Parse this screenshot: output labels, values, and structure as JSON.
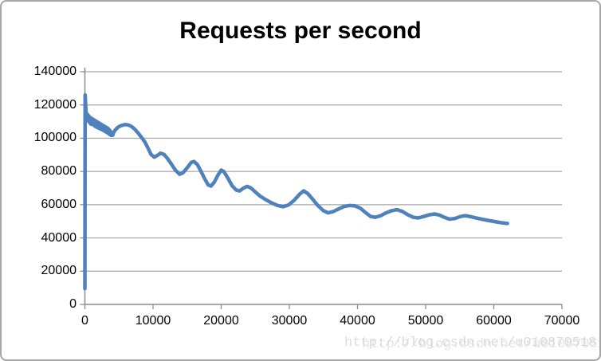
{
  "header": {
    "title": "Requests per second"
  },
  "watermark": {
    "text": "http://blog.csdn.net/u010870518"
  },
  "colors": {
    "series_line": "#4F81BD",
    "gridline": "#a6a6a6",
    "axis": "#8c8c8c",
    "label_text": "#000000",
    "frame_border": "#a6a6a6",
    "watermark_text": "#d4d4d4"
  },
  "chart_data": {
    "type": "line",
    "title": "Requests per second",
    "xlabel": "",
    "ylabel": "",
    "xlim": [
      0,
      70000
    ],
    "ylim": [
      0,
      140000
    ],
    "x_ticks": [
      0,
      10000,
      20000,
      30000,
      40000,
      50000,
      60000,
      70000
    ],
    "y_ticks": [
      0,
      20000,
      40000,
      60000,
      80000,
      100000,
      120000,
      140000
    ],
    "grid": "horizontal",
    "legend_position": "none",
    "series": [
      {
        "name": "Requests per second",
        "color": "#4F81BD",
        "stroke_width": 4.5,
        "points": [
          [
            0,
            9500
          ],
          [
            30,
            126000
          ],
          [
            80,
            122000
          ],
          [
            160,
            116500
          ],
          [
            260,
            113000
          ],
          [
            360,
            114500
          ],
          [
            460,
            110500
          ],
          [
            560,
            113500
          ],
          [
            660,
            109500
          ],
          [
            760,
            112500
          ],
          [
            860,
            108500
          ],
          [
            960,
            112000
          ],
          [
            1060,
            108200
          ],
          [
            1160,
            111500
          ],
          [
            1260,
            108000
          ],
          [
            1360,
            111000
          ],
          [
            1460,
            107200
          ],
          [
            1560,
            110500
          ],
          [
            1660,
            106800
          ],
          [
            1760,
            110000
          ],
          [
            1860,
            106300
          ],
          [
            1960,
            109500
          ],
          [
            2060,
            106000
          ],
          [
            2160,
            109000
          ],
          [
            2260,
            105600
          ],
          [
            2360,
            108500
          ],
          [
            2460,
            105200
          ],
          [
            2560,
            108000
          ],
          [
            2660,
            104800
          ],
          [
            2760,
            107500
          ],
          [
            2860,
            104300
          ],
          [
            2960,
            107000
          ],
          [
            3060,
            103800
          ],
          [
            3160,
            106500
          ],
          [
            3260,
            103300
          ],
          [
            3360,
            106000
          ],
          [
            3460,
            102800
          ],
          [
            3560,
            105200
          ],
          [
            3660,
            102200
          ],
          [
            3760,
            104300
          ],
          [
            3860,
            101700
          ],
          [
            3960,
            103200
          ],
          [
            4080,
            101800
          ],
          [
            4250,
            103600
          ],
          [
            4450,
            104900
          ],
          [
            4700,
            106000
          ],
          [
            5000,
            107000
          ],
          [
            5400,
            107700
          ],
          [
            5900,
            108200
          ],
          [
            6300,
            108000
          ],
          [
            6800,
            107200
          ],
          [
            7300,
            105500
          ],
          [
            7800,
            103200
          ],
          [
            8300,
            100500
          ],
          [
            8800,
            97800
          ],
          [
            9300,
            93800
          ],
          [
            9700,
            90300
          ],
          [
            10200,
            88600
          ],
          [
            10700,
            89800
          ],
          [
            11100,
            91000
          ],
          [
            11600,
            90300
          ],
          [
            12100,
            87900
          ],
          [
            12700,
            84400
          ],
          [
            13300,
            80700
          ],
          [
            13900,
            78300
          ],
          [
            14400,
            79200
          ],
          [
            15000,
            82200
          ],
          [
            15600,
            85400
          ],
          [
            16000,
            86000
          ],
          [
            16500,
            84200
          ],
          [
            17000,
            80400
          ],
          [
            17600,
            75400
          ],
          [
            18100,
            71800
          ],
          [
            18500,
            71200
          ],
          [
            19000,
            73600
          ],
          [
            19500,
            77600
          ],
          [
            20000,
            80800
          ],
          [
            20400,
            79900
          ],
          [
            21000,
            75900
          ],
          [
            21600,
            71400
          ],
          [
            22200,
            68800
          ],
          [
            22700,
            68300
          ],
          [
            23200,
            69800
          ],
          [
            23800,
            71000
          ],
          [
            24300,
            70200
          ],
          [
            25000,
            67700
          ],
          [
            25700,
            65200
          ],
          [
            26500,
            63100
          ],
          [
            27400,
            61100
          ],
          [
            28300,
            59500
          ],
          [
            29100,
            58800
          ],
          [
            29900,
            59900
          ],
          [
            30700,
            62600
          ],
          [
            31500,
            66300
          ],
          [
            32100,
            68300
          ],
          [
            32700,
            66700
          ],
          [
            33400,
            63400
          ],
          [
            34200,
            59400
          ],
          [
            35000,
            56400
          ],
          [
            35700,
            55100
          ],
          [
            36400,
            55800
          ],
          [
            37200,
            57400
          ],
          [
            38000,
            58900
          ],
          [
            38800,
            59500
          ],
          [
            39600,
            59300
          ],
          [
            40400,
            57900
          ],
          [
            41200,
            55200
          ],
          [
            41900,
            53000
          ],
          [
            42600,
            52400
          ],
          [
            43400,
            53400
          ],
          [
            44200,
            55100
          ],
          [
            45000,
            56400
          ],
          [
            45800,
            57000
          ],
          [
            46600,
            55900
          ],
          [
            47400,
            53900
          ],
          [
            48200,
            52400
          ],
          [
            48900,
            52000
          ],
          [
            49700,
            52900
          ],
          [
            50500,
            53900
          ],
          [
            51300,
            54400
          ],
          [
            52000,
            53800
          ],
          [
            52800,
            52300
          ],
          [
            53500,
            51300
          ],
          [
            54300,
            51700
          ],
          [
            55100,
            52900
          ],
          [
            55800,
            53400
          ],
          [
            56500,
            52900
          ],
          [
            57300,
            52100
          ],
          [
            58200,
            51300
          ],
          [
            59100,
            50600
          ],
          [
            60000,
            49900
          ],
          [
            61000,
            49200
          ],
          [
            62000,
            48700
          ]
        ]
      }
    ]
  }
}
